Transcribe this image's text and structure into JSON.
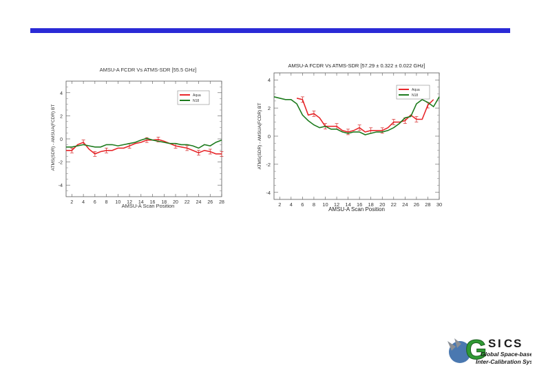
{
  "colors": {
    "bar": "#2a2ad6",
    "aqua": "#e8262a",
    "n18": "#1c7a1c",
    "error": "#d42020"
  },
  "chart_data": [
    {
      "type": "line",
      "title": "AMSU-A FCDR Vs ATMS-SDR [55.5 GHz]",
      "xlabel": "AMSU-A Scan Position",
      "ylabel": "ATMS(SDR) - AMSUA(FCDR) BT",
      "xlim": [
        1,
        28
      ],
      "ylim": [
        -5,
        5
      ],
      "xticks": [
        2,
        4,
        6,
        8,
        10,
        12,
        14,
        16,
        18,
        20,
        22,
        24,
        26,
        28
      ],
      "yticks": [
        -4,
        -2,
        0,
        2,
        4
      ],
      "legend": "top-right",
      "series": [
        {
          "name": "Aqua",
          "color": "#e8262a",
          "x": [
            1,
            2,
            3,
            4,
            5,
            6,
            7,
            8,
            9,
            10,
            11,
            12,
            13,
            14,
            15,
            16,
            17,
            18,
            19,
            20,
            21,
            22,
            23,
            24,
            25,
            26,
            27,
            28
          ],
          "y": [
            -1.0,
            -1.0,
            -0.5,
            -0.3,
            -0.9,
            -1.3,
            -1.1,
            -1.0,
            -1.0,
            -0.8,
            -0.8,
            -0.6,
            -0.4,
            -0.3,
            -0.1,
            -0.1,
            -0.05,
            -0.2,
            -0.4,
            -0.6,
            -0.7,
            -0.8,
            -1.0,
            -1.2,
            -1.0,
            -1.1,
            -1.3,
            -1.3
          ],
          "error_bars_at": [
            2,
            4,
            6,
            8,
            12,
            15,
            17,
            20,
            22,
            24,
            26,
            28
          ]
        },
        {
          "name": "N18",
          "color": "#1c7a1c",
          "x": [
            1,
            2,
            3,
            4,
            5,
            6,
            7,
            8,
            9,
            10,
            11,
            12,
            13,
            14,
            15,
            16,
            17,
            18,
            19,
            20,
            21,
            22,
            23,
            24,
            25,
            26,
            27,
            28
          ],
          "y": [
            -0.7,
            -0.7,
            -0.6,
            -0.5,
            -0.6,
            -0.7,
            -0.7,
            -0.5,
            -0.5,
            -0.6,
            -0.5,
            -0.4,
            -0.3,
            -0.1,
            0.05,
            -0.1,
            -0.2,
            -0.3,
            -0.4,
            -0.4,
            -0.5,
            -0.5,
            -0.6,
            -0.8,
            -0.5,
            -0.6,
            -0.3,
            -0.1
          ]
        }
      ]
    },
    {
      "type": "line",
      "title": "AMSU-A FCDR Vs ATMS-SDR [57.29 ± 0.322 ± 0.022 GHz]",
      "xlabel": "AMSU-A Scan Position",
      "ylabel": "ATMS(SDR) - AMSUA(FCDR) BT",
      "xlim": [
        1,
        30
      ],
      "ylim": [
        -4.5,
        4.5
      ],
      "xticks": [
        2,
        4,
        6,
        8,
        10,
        12,
        14,
        16,
        18,
        20,
        22,
        24,
        26,
        28,
        30
      ],
      "yticks": [
        -4,
        -2,
        0,
        2,
        4
      ],
      "legend": "top-right",
      "series": [
        {
          "name": "Aqua",
          "color": "#e8262a",
          "x": [
            5,
            6,
            7,
            8,
            9,
            10,
            11,
            12,
            13,
            14,
            15,
            16,
            17,
            18,
            19,
            20,
            21,
            22,
            23,
            24,
            25,
            26,
            27,
            28,
            29
          ],
          "y": [
            2.7,
            2.6,
            1.5,
            1.6,
            1.3,
            0.7,
            0.7,
            0.7,
            0.4,
            0.3,
            0.4,
            0.6,
            0.3,
            0.4,
            0.4,
            0.4,
            0.6,
            1.0,
            1.0,
            1.1,
            1.5,
            1.2,
            1.2,
            2.2,
            2.6
          ],
          "error_bars_at": [
            6,
            8,
            10,
            12,
            14,
            16,
            18,
            20,
            22,
            24,
            26,
            28
          ]
        },
        {
          "name": "N18",
          "color": "#1c7a1c",
          "x": [
            1,
            2,
            3,
            4,
            5,
            6,
            7,
            8,
            9,
            10,
            11,
            12,
            13,
            14,
            15,
            16,
            17,
            18,
            19,
            20,
            21,
            22,
            23,
            24,
            25,
            26,
            27,
            28,
            29,
            30
          ],
          "y": [
            2.8,
            2.7,
            2.6,
            2.6,
            2.3,
            1.5,
            1.1,
            0.8,
            0.6,
            0.7,
            0.5,
            0.5,
            0.3,
            0.2,
            0.3,
            0.3,
            0.1,
            0.2,
            0.3,
            0.3,
            0.4,
            0.6,
            0.9,
            1.3,
            1.4,
            2.3,
            2.6,
            2.4,
            2.1,
            2.8
          ]
        }
      ]
    }
  ],
  "logo": {
    "letters": [
      "G",
      "S",
      "I",
      "C",
      "S"
    ],
    "line1": "Global Space-based",
    "line2": "Inter-Calibration System"
  }
}
